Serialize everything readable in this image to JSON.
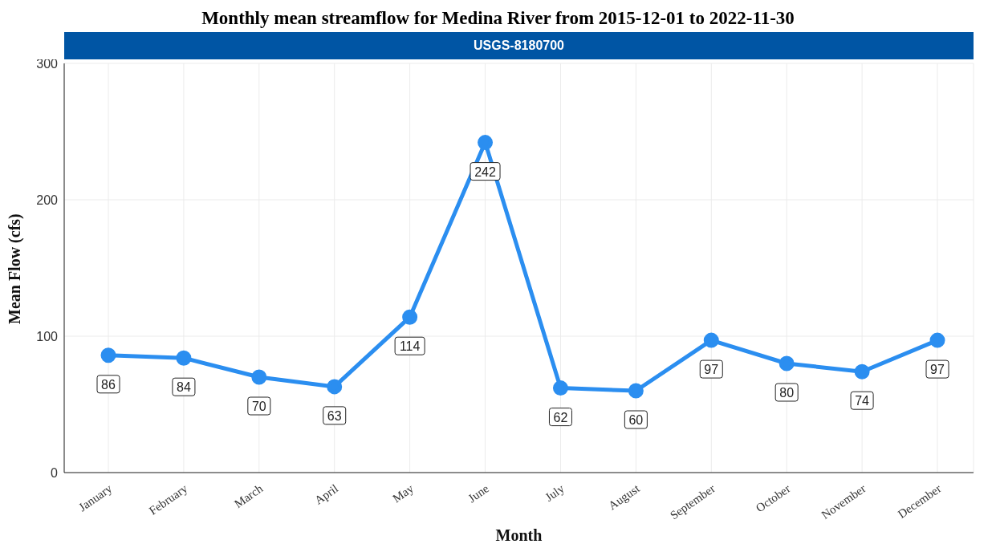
{
  "chart_data": {
    "type": "line",
    "title": "Monthly mean streamflow for Medina River from 2015-12-01 to 2022-11-30",
    "subtitle": "USGS-8180700",
    "xlabel": "Month",
    "ylabel": "Mean Flow (cfs)",
    "categories": [
      "January",
      "February",
      "March",
      "April",
      "May",
      "June",
      "July",
      "August",
      "September",
      "October",
      "November",
      "December"
    ],
    "series": [
      {
        "color": "#2b8ef0",
        "values": [
          86,
          84,
          70,
          63,
          114,
          242,
          62,
          60,
          97,
          80,
          74,
          97
        ]
      }
    ],
    "ylim": [
      0,
      300
    ],
    "yticks": [
      0,
      100,
      200,
      300
    ],
    "grid": true,
    "legend": false,
    "marker": "circle",
    "line_style": "solid",
    "data_labels": true
  }
}
